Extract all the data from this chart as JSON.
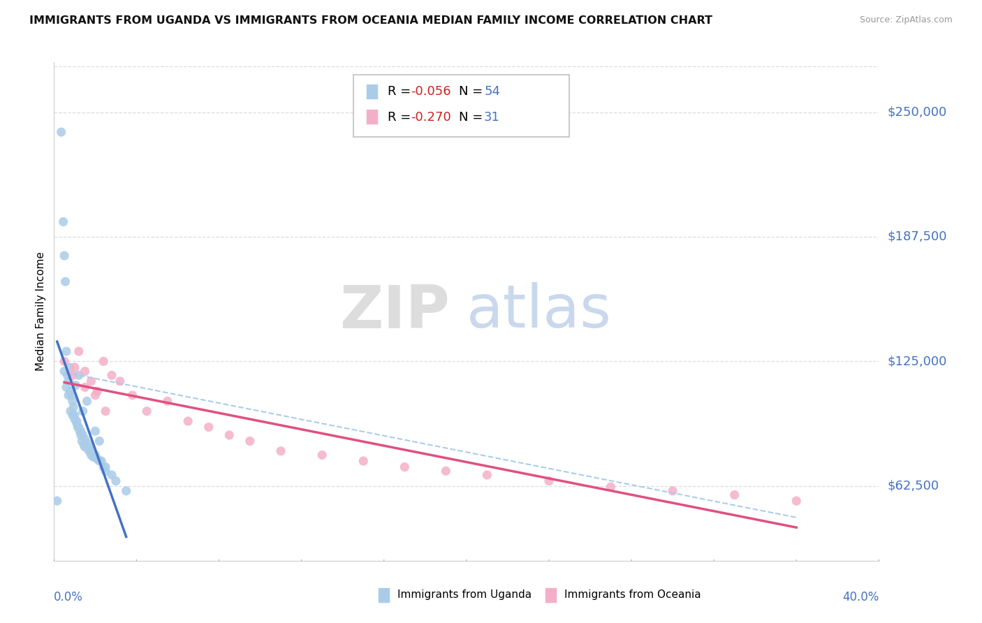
{
  "title": "IMMIGRANTS FROM UGANDA VS IMMIGRANTS FROM OCEANIA MEDIAN FAMILY INCOME CORRELATION CHART",
  "source": "Source: ZipAtlas.com",
  "ylabel": "Median Family Income",
  "yticks": [
    62500,
    125000,
    187500,
    250000
  ],
  "ytick_labels": [
    "$62,500",
    "$125,000",
    "$187,500",
    "$250,000"
  ],
  "xmin": 0.0,
  "xmax": 40.0,
  "ymin": 25000,
  "ymax": 275000,
  "watermark_zip": "ZIP",
  "watermark_atlas": "atlas",
  "uganda_color": "#aacce8",
  "oceania_color": "#f4afc8",
  "uganda_line_color": "#4472c4",
  "oceania_line_color": "#e05080",
  "dashed_line_color": "#aaccee",
  "axis_label_color": "#4472c4",
  "grid_color": "#dddddd",
  "legend_r_color": "#cc2222",
  "legend_n_color": "#4472c4",
  "legend_border_color": "#c0c0c0",
  "legend_r1": "-0.056",
  "legend_n1": "54",
  "legend_r2": "-0.270",
  "legend_n2": "31",
  "uganda_x": [
    0.15,
    0.35,
    0.45,
    0.5,
    0.55,
    0.6,
    0.65,
    0.7,
    0.75,
    0.8,
    0.85,
    0.9,
    0.95,
    1.0,
    1.05,
    1.1,
    1.15,
    1.2,
    1.25,
    1.3,
    1.35,
    1.4,
    1.45,
    1.5,
    1.6,
    1.7,
    1.8,
    1.9,
    2.0,
    2.1,
    2.2,
    2.3,
    2.4,
    2.5,
    0.5,
    0.6,
    0.7,
    0.8,
    0.9,
    1.0,
    1.1,
    1.2,
    1.3,
    1.4,
    1.5,
    1.6,
    1.7,
    1.8,
    2.0,
    2.2,
    2.5,
    2.8,
    3.0,
    3.5
  ],
  "uganda_y": [
    55000,
    240000,
    195000,
    178000,
    165000,
    130000,
    118000,
    115000,
    122000,
    110000,
    108000,
    105000,
    102000,
    98000,
    113000,
    95000,
    92000,
    118000,
    90000,
    88000,
    85000,
    100000,
    83000,
    82000,
    105000,
    80000,
    78000,
    77000,
    90000,
    76000,
    85000,
    75000,
    72000,
    70000,
    120000,
    112000,
    108000,
    100000,
    98000,
    96000,
    94000,
    92000,
    90000,
    88000,
    86000,
    84000,
    82000,
    80000,
    78000,
    75000,
    72000,
    68000,
    65000,
    60000
  ],
  "oceania_x": [
    0.5,
    0.9,
    1.2,
    1.5,
    1.8,
    2.1,
    2.4,
    2.8,
    3.2,
    3.8,
    4.5,
    5.5,
    6.5,
    7.5,
    8.5,
    9.5,
    11.0,
    13.0,
    15.0,
    17.0,
    19.0,
    21.0,
    24.0,
    27.0,
    30.0,
    33.0,
    36.0,
    1.0,
    1.5,
    2.0,
    2.5
  ],
  "oceania_y": [
    125000,
    118000,
    130000,
    120000,
    115000,
    110000,
    125000,
    118000,
    115000,
    108000,
    100000,
    105000,
    95000,
    92000,
    88000,
    85000,
    80000,
    78000,
    75000,
    72000,
    70000,
    68000,
    65000,
    62000,
    60000,
    58000,
    55000,
    122000,
    112000,
    108000,
    100000
  ]
}
